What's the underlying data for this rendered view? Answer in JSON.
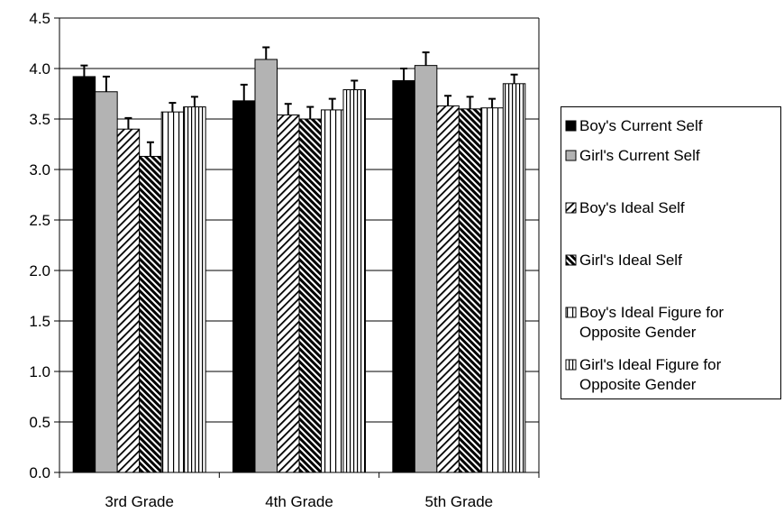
{
  "chart_data": {
    "type": "bar",
    "categories": [
      "3rd Grade",
      "4th Grade",
      "5th Grade"
    ],
    "ylim": [
      0,
      4.5
    ],
    "yticks": [
      "0.0",
      "0.5",
      "1.0",
      "1.5",
      "2.0",
      "2.5",
      "3.0",
      "3.5",
      "4.0",
      "4.5"
    ],
    "grid": true,
    "legend_position": "right",
    "series": [
      {
        "name": "Boy's Current Self",
        "lines": [
          "Boy's Current Self"
        ],
        "pattern": "solid-black",
        "values": [
          3.92,
          3.68,
          3.88
        ],
        "errors": [
          0.11,
          0.16,
          0.12
        ]
      },
      {
        "name": "Girl's Current Self",
        "lines": [
          "Girl's Current Self"
        ],
        "pattern": "solid-gray",
        "values": [
          3.77,
          4.09,
          4.03
        ],
        "errors": [
          0.15,
          0.12,
          0.13
        ]
      },
      {
        "name": "Boy's Ideal Self",
        "lines": [
          "Boy's Ideal Self"
        ],
        "pattern": "diagonal-light",
        "values": [
          3.4,
          3.54,
          3.63
        ],
        "errors": [
          0.11,
          0.11,
          0.1
        ]
      },
      {
        "name": "Girl's Ideal Self",
        "lines": [
          "Girl's Ideal Self"
        ],
        "pattern": "diagonal-dark",
        "values": [
          3.13,
          3.5,
          3.6
        ],
        "errors": [
          0.14,
          0.12,
          0.12
        ]
      },
      {
        "name": "Boy's Ideal Figure for Opposite Gender",
        "lines": [
          "Boy's Ideal Figure for",
          "Opposite Gender"
        ],
        "pattern": "vertical-wide",
        "values": [
          3.57,
          3.59,
          3.61
        ],
        "errors": [
          0.09,
          0.11,
          0.09
        ]
      },
      {
        "name": "Girl's Ideal Figure for Opposite Gender",
        "lines": [
          "Girl's Ideal Figure for",
          "Opposite Gender"
        ],
        "pattern": "vertical-narrow",
        "values": [
          3.62,
          3.79,
          3.85
        ],
        "errors": [
          0.1,
          0.09,
          0.09
        ]
      }
    ]
  },
  "colors": {
    "bar_outline": "#000000",
    "gray_fill": "#b3b3b3",
    "gridline": "#000000"
  }
}
